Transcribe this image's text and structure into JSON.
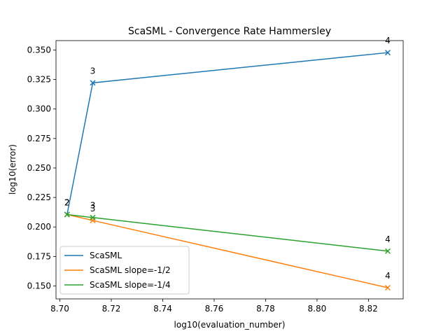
{
  "chart_data": {
    "type": "line",
    "title": "ScaSML - Convergence Rate Hammersley",
    "xlabel": "log10(evaluation_number)",
    "ylabel": "log10(error)",
    "xlim": [
      8.6985,
      8.8335
    ],
    "ylim": [
      0.139,
      0.358
    ],
    "xticks": [
      8.7,
      8.72,
      8.74,
      8.76,
      8.78,
      8.8,
      8.82
    ],
    "xtick_labels": [
      "8.70",
      "8.72",
      "8.74",
      "8.76",
      "8.78",
      "8.80",
      "8.82"
    ],
    "yticks": [
      0.15,
      0.175,
      0.2,
      0.225,
      0.25,
      0.275,
      0.3,
      0.325,
      0.35
    ],
    "ytick_labels": [
      "0.150",
      "0.175",
      "0.200",
      "0.225",
      "0.250",
      "0.275",
      "0.300",
      "0.325",
      "0.350"
    ],
    "grid": false,
    "legend_position": "lower-left",
    "series": [
      {
        "name": "ScaSML",
        "color": "#1f77b4",
        "marker": "x",
        "x": [
          8.7028,
          8.7128,
          8.8275
        ],
        "y": [
          0.2105,
          0.3222,
          0.3478
        ],
        "point_labels": [
          "2",
          "3",
          "4"
        ]
      },
      {
        "name": "ScaSML slope=-1/2",
        "color": "#ff7f0e",
        "marker": "x",
        "x": [
          8.7028,
          8.7128,
          8.8275
        ],
        "y": [
          0.2105,
          0.2055,
          0.1485
        ],
        "point_labels": [
          "2",
          "3",
          "4"
        ]
      },
      {
        "name": "ScaSML slope=-1/4",
        "color": "#2ca02c",
        "marker": "x",
        "x": [
          8.7028,
          8.7128,
          8.8275
        ],
        "y": [
          0.2105,
          0.208,
          0.1795
        ],
        "point_labels": [
          "2",
          "3",
          "4"
        ]
      }
    ]
  }
}
